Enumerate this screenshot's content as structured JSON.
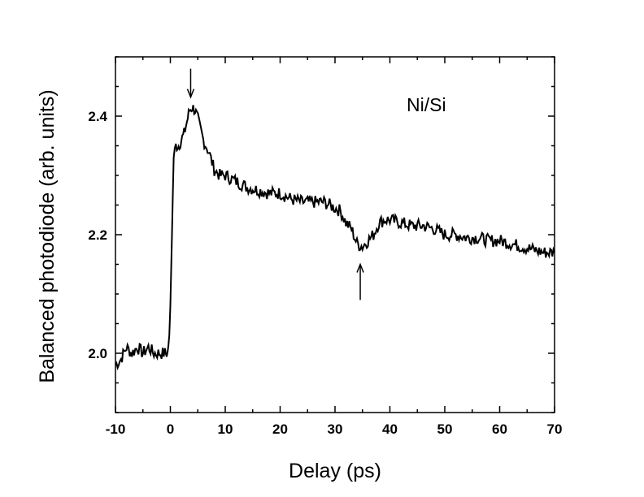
{
  "chart_data": {
    "type": "line",
    "xlabel": "Delay (ps)",
    "ylabel": "Balanced photodiode (arb. units)",
    "xlim": [
      -10,
      70
    ],
    "ylim": [
      1.9,
      2.5
    ],
    "x_ticks": [
      -10,
      0,
      10,
      20,
      30,
      40,
      50,
      60,
      70
    ],
    "x_tick_labels": [
      "-10",
      "0",
      "10",
      "20",
      "30",
      "40",
      "50",
      "60",
      "70"
    ],
    "y_ticks": [
      2.0,
      2.2,
      2.4
    ],
    "y_tick_labels": [
      "2.0",
      "2.2",
      "2.4"
    ],
    "grid": false,
    "annotations": [
      {
        "text": "Ni/Si"
      },
      {
        "type": "arrow-down",
        "x": 3.7,
        "y_from": 2.48,
        "y_to": 2.432
      },
      {
        "type": "arrow-up",
        "x": 34.6,
        "y_from": 2.09,
        "y_to": 2.15
      }
    ],
    "series": [
      {
        "color": "#000000",
        "x": [
          -10,
          -9,
          -8,
          -7,
          -6,
          -5,
          -4,
          -3,
          -2,
          -1,
          -0.5,
          -0.2,
          0,
          0.3,
          0.6,
          1,
          1.5,
          2,
          2.5,
          3,
          3.5,
          4,
          4.5,
          5,
          6,
          7,
          8,
          9,
          10,
          12,
          14,
          16,
          18,
          20,
          22,
          24,
          26,
          28,
          30,
          31,
          32,
          33,
          34,
          35,
          36,
          37,
          38,
          39,
          40,
          42,
          44,
          46,
          48,
          50,
          52,
          54,
          56,
          58,
          60,
          62,
          64,
          66,
          68,
          70
        ],
        "y": [
          1.98,
          1.99,
          2.01,
          2.0,
          2.01,
          2.0,
          2.01,
          2.0,
          2.0,
          2.0,
          2.0,
          2.03,
          2.08,
          2.2,
          2.33,
          2.35,
          2.35,
          2.36,
          2.37,
          2.39,
          2.41,
          2.415,
          2.41,
          2.395,
          2.36,
          2.34,
          2.31,
          2.3,
          2.3,
          2.29,
          2.28,
          2.275,
          2.27,
          2.27,
          2.26,
          2.255,
          2.255,
          2.255,
          2.245,
          2.24,
          2.22,
          2.21,
          2.185,
          2.18,
          2.19,
          2.2,
          2.22,
          2.225,
          2.225,
          2.22,
          2.215,
          2.215,
          2.21,
          2.2,
          2.2,
          2.195,
          2.195,
          2.19,
          2.19,
          2.185,
          2.18,
          2.175,
          2.17,
          2.17
        ]
      }
    ]
  }
}
